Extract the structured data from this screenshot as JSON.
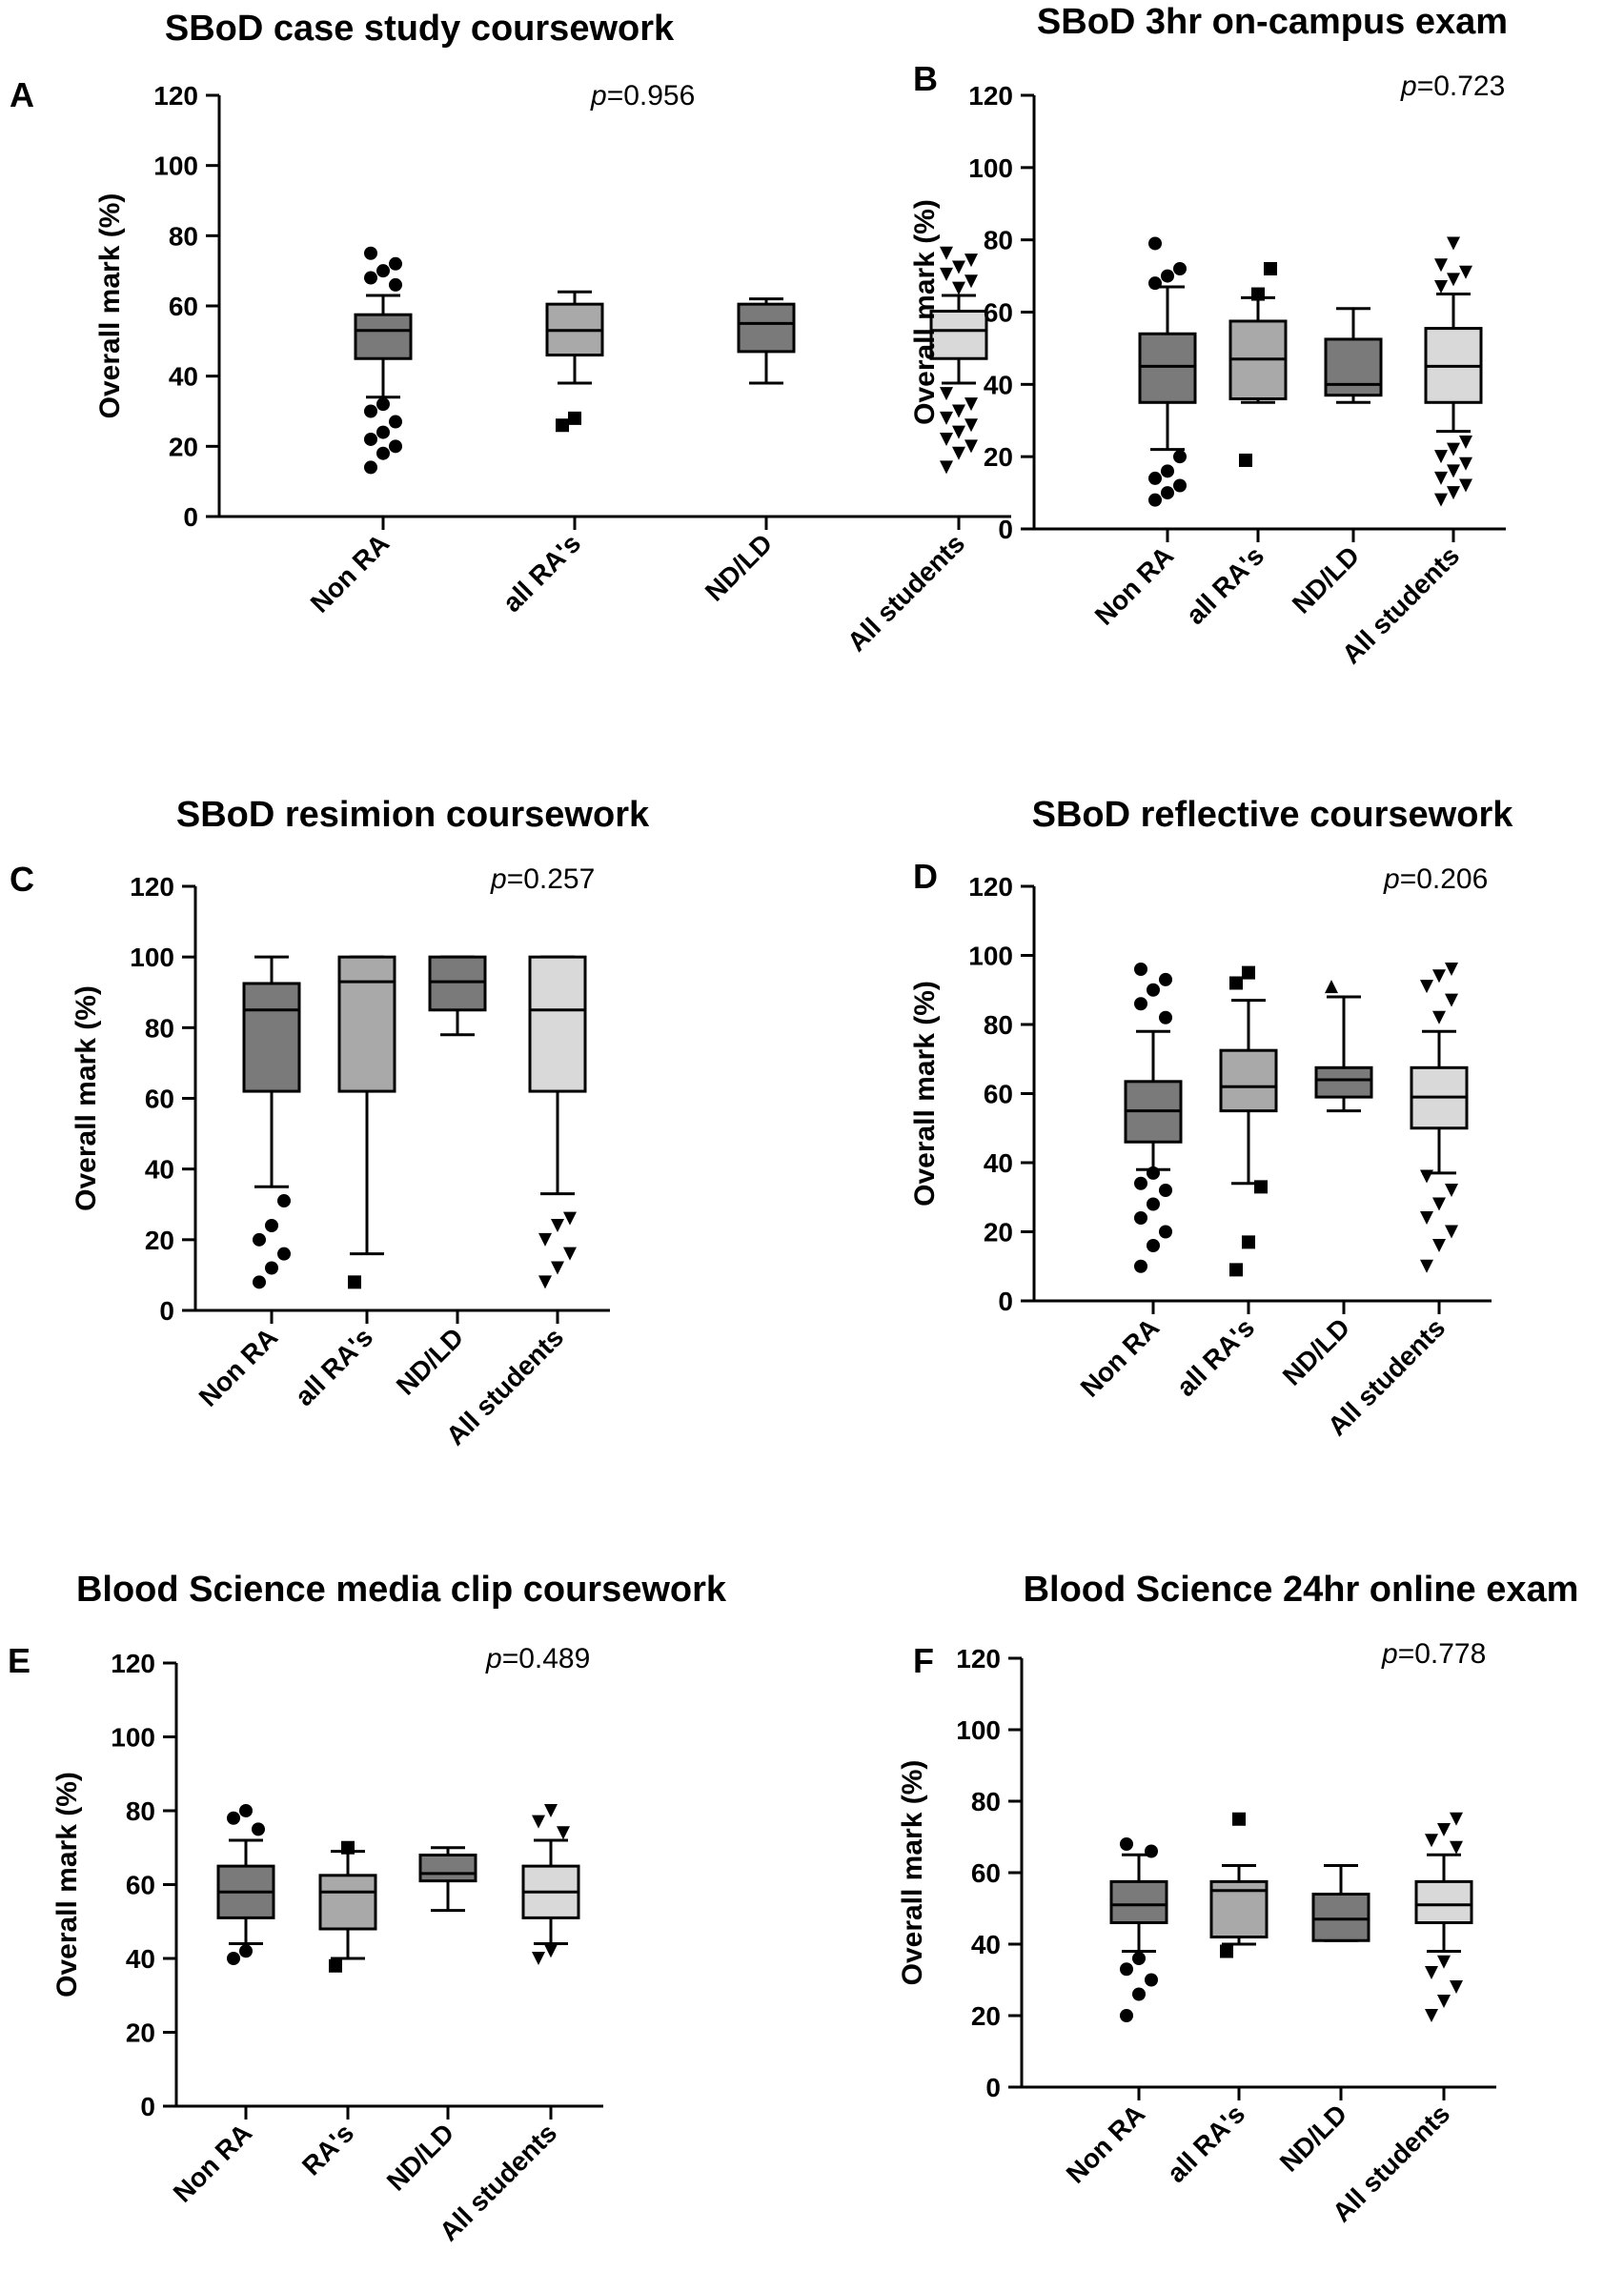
{
  "chart_data": [
    {
      "type": "boxplot",
      "panel": "A",
      "title": "SBoD case study coursework",
      "ylabel": "Overall mark (%)",
      "ylim": [
        0,
        120
      ],
      "yticks": [
        0,
        20,
        40,
        60,
        80,
        100,
        120
      ],
      "p_prefix": "p",
      "p_value": "=0.956",
      "categories": [
        "Non RA",
        "all RA's",
        "ND/LD",
        "All students"
      ],
      "series": [
        {
          "q1": 45,
          "median": 53,
          "q3": 57.5,
          "whisker_low": 34,
          "whisker_high": 63,
          "marker": "circle",
          "fill": "#7a7a7a",
          "outliers": [
            14,
            18,
            20,
            22,
            24,
            27,
            30,
            32,
            66,
            68,
            70,
            72,
            75
          ]
        },
        {
          "q1": 46,
          "median": 53,
          "q3": 60.5,
          "whisker_low": 38,
          "whisker_high": 64,
          "marker": "square",
          "fill": "#a9a9a9",
          "outliers": [
            26,
            28
          ]
        },
        {
          "q1": 47,
          "median": 55,
          "q3": 60.5,
          "whisker_low": 38,
          "whisker_high": 62,
          "marker": "triangle",
          "fill": "#7a7a7a",
          "outliers": []
        },
        {
          "q1": 45,
          "median": 53,
          "q3": 58.5,
          "whisker_low": 38,
          "whisker_high": 63,
          "marker": "triangle-down",
          "fill": "#d9d9d9",
          "outliers": [
            14,
            18,
            20,
            22,
            24,
            26,
            28,
            30,
            32,
            35,
            65,
            67,
            69,
            71,
            73,
            75
          ]
        }
      ]
    },
    {
      "type": "boxplot",
      "panel": "B",
      "title": "SBoD 3hr on-campus exam",
      "ylabel": "Overall mark (%)",
      "ylim": [
        0,
        120
      ],
      "yticks": [
        0,
        20,
        40,
        60,
        80,
        100,
        120
      ],
      "p_prefix": "p",
      "p_value": "=0.723",
      "categories": [
        "Non RA",
        "all RA's",
        "ND/LD",
        "All students"
      ],
      "series": [
        {
          "q1": 35,
          "median": 45,
          "q3": 54,
          "whisker_low": 22,
          "whisker_high": 67,
          "marker": "circle",
          "fill": "#7a7a7a",
          "outliers": [
            8,
            10,
            12,
            14,
            16,
            20,
            68,
            70,
            72,
            79
          ]
        },
        {
          "q1": 36,
          "median": 47,
          "q3": 57.5,
          "whisker_low": 35,
          "whisker_high": 64,
          "marker": "square",
          "fill": "#a9a9a9",
          "outliers": [
            19,
            65,
            72
          ]
        },
        {
          "q1": 37,
          "median": 40,
          "q3": 52.5,
          "whisker_low": 35,
          "whisker_high": 61,
          "marker": "triangle",
          "fill": "#7a7a7a",
          "outliers": []
        },
        {
          "q1": 35,
          "median": 45,
          "q3": 55.5,
          "whisker_low": 27,
          "whisker_high": 65,
          "marker": "triangle-down",
          "fill": "#d9d9d9",
          "outliers": [
            8,
            10,
            12,
            14,
            16,
            18,
            20,
            22,
            24,
            67,
            69,
            71,
            73,
            79
          ]
        }
      ]
    },
    {
      "type": "boxplot",
      "panel": "C",
      "title": "SBoD resimion coursework",
      "ylabel": "Overall mark (%)",
      "ylim": [
        0,
        120
      ],
      "yticks": [
        0,
        20,
        40,
        60,
        80,
        100,
        120
      ],
      "p_prefix": "p",
      "p_value": "=0.257",
      "categories": [
        "Non RA",
        "all RA's",
        "ND/LD",
        "All students"
      ],
      "series": [
        {
          "q1": 62,
          "median": 85,
          "q3": 92.5,
          "whisker_low": 35,
          "whisker_high": 100,
          "marker": "circle",
          "fill": "#7a7a7a",
          "outliers": [
            8,
            12,
            16,
            20,
            24,
            31
          ]
        },
        {
          "q1": 62,
          "median": 93,
          "q3": 100,
          "whisker_low": 16,
          "whisker_high": 100,
          "marker": "square",
          "fill": "#a9a9a9",
          "outliers": [
            8
          ]
        },
        {
          "q1": 85,
          "median": 93,
          "q3": 100,
          "whisker_low": 78,
          "whisker_high": 100,
          "marker": "triangle",
          "fill": "#7a7a7a",
          "outliers": []
        },
        {
          "q1": 62,
          "median": 85,
          "q3": 100,
          "whisker_low": 33,
          "whisker_high": 100,
          "marker": "triangle-down",
          "fill": "#d9d9d9",
          "outliers": [
            8,
            12,
            16,
            20,
            24,
            26
          ]
        }
      ]
    },
    {
      "type": "boxplot",
      "panel": "D",
      "title": "SBoD reflective coursework",
      "ylabel": "Overall mark (%)",
      "ylim": [
        0,
        120
      ],
      "yticks": [
        0,
        20,
        40,
        60,
        80,
        100,
        120
      ],
      "p_prefix": "p",
      "p_value": "=0.206",
      "categories": [
        "Non RA",
        "all RA's",
        "ND/LD",
        "All students"
      ],
      "series": [
        {
          "q1": 46,
          "median": 55,
          "q3": 63.5,
          "whisker_low": 38,
          "whisker_high": 78,
          "marker": "circle",
          "fill": "#7a7a7a",
          "outliers": [
            10,
            16,
            20,
            24,
            28,
            32,
            34,
            37,
            82,
            86,
            90,
            93,
            96
          ]
        },
        {
          "q1": 55,
          "median": 62,
          "q3": 72.5,
          "whisker_low": 34,
          "whisker_high": 87,
          "marker": "square",
          "fill": "#a9a9a9",
          "outliers": [
            9,
            17,
            33,
            92,
            95
          ]
        },
        {
          "q1": 59,
          "median": 64,
          "q3": 67.5,
          "whisker_low": 55,
          "whisker_high": 88,
          "marker": "triangle",
          "fill": "#7a7a7a",
          "outliers": [
            91
          ]
        },
        {
          "q1": 50,
          "median": 59,
          "q3": 67.5,
          "whisker_low": 37,
          "whisker_high": 78,
          "marker": "triangle-down",
          "fill": "#d9d9d9",
          "outliers": [
            10,
            16,
            20,
            24,
            28,
            32,
            36,
            82,
            87,
            91,
            94,
            96
          ]
        }
      ]
    },
    {
      "type": "boxplot",
      "panel": "E",
      "title": "Blood Science media clip coursework",
      "ylabel": "Overall mark (%)",
      "ylim": [
        0,
        120
      ],
      "yticks": [
        0,
        20,
        40,
        60,
        80,
        100,
        120
      ],
      "p_prefix": "p",
      "p_value": "=0.489",
      "categories": [
        "Non RA",
        "RA's",
        "ND/LD",
        "All students"
      ],
      "series": [
        {
          "q1": 51,
          "median": 58,
          "q3": 65,
          "whisker_low": 44,
          "whisker_high": 72,
          "marker": "circle",
          "fill": "#7a7a7a",
          "outliers": [
            40,
            42,
            75,
            78,
            80
          ]
        },
        {
          "q1": 48,
          "median": 58,
          "q3": 62.5,
          "whisker_low": 40,
          "whisker_high": 69,
          "marker": "square",
          "fill": "#a9a9a9",
          "outliers": [
            38,
            70
          ]
        },
        {
          "q1": 61,
          "median": 63,
          "q3": 68,
          "whisker_low": 53,
          "whisker_high": 70,
          "marker": "triangle",
          "fill": "#7a7a7a",
          "outliers": []
        },
        {
          "q1": 51,
          "median": 58,
          "q3": 65,
          "whisker_low": 44,
          "whisker_high": 72,
          "marker": "triangle-down",
          "fill": "#d9d9d9",
          "outliers": [
            40,
            42,
            74,
            77,
            80
          ]
        }
      ]
    },
    {
      "type": "boxplot",
      "panel": "F",
      "title": "Blood Science 24hr online exam",
      "ylabel": "Overall mark (%)",
      "ylim": [
        0,
        120
      ],
      "yticks": [
        0,
        20,
        40,
        60,
        80,
        100,
        120
      ],
      "p_prefix": "p",
      "p_value": "=0.778",
      "categories": [
        "Non RA",
        "all RA's",
        "ND/LD",
        "All students"
      ],
      "series": [
        {
          "q1": 46,
          "median": 51,
          "q3": 57.5,
          "whisker_low": 38,
          "whisker_high": 65,
          "marker": "circle",
          "fill": "#7a7a7a",
          "outliers": [
            20,
            26,
            30,
            33,
            36,
            66,
            68
          ]
        },
        {
          "q1": 42,
          "median": 55,
          "q3": 57.5,
          "whisker_low": 40,
          "whisker_high": 62,
          "marker": "square",
          "fill": "#a9a9a9",
          "outliers": [
            38,
            75
          ]
        },
        {
          "q1": 41,
          "median": 47,
          "q3": 54,
          "whisker_low": 41,
          "whisker_high": 62,
          "marker": "triangle",
          "fill": "#7a7a7a",
          "outliers": []
        },
        {
          "q1": 46,
          "median": 51,
          "q3": 57.5,
          "whisker_low": 38,
          "whisker_high": 65,
          "marker": "triangle-down",
          "fill": "#d9d9d9",
          "outliers": [
            20,
            24,
            28,
            32,
            35,
            67,
            69,
            72,
            75
          ]
        }
      ]
    }
  ]
}
